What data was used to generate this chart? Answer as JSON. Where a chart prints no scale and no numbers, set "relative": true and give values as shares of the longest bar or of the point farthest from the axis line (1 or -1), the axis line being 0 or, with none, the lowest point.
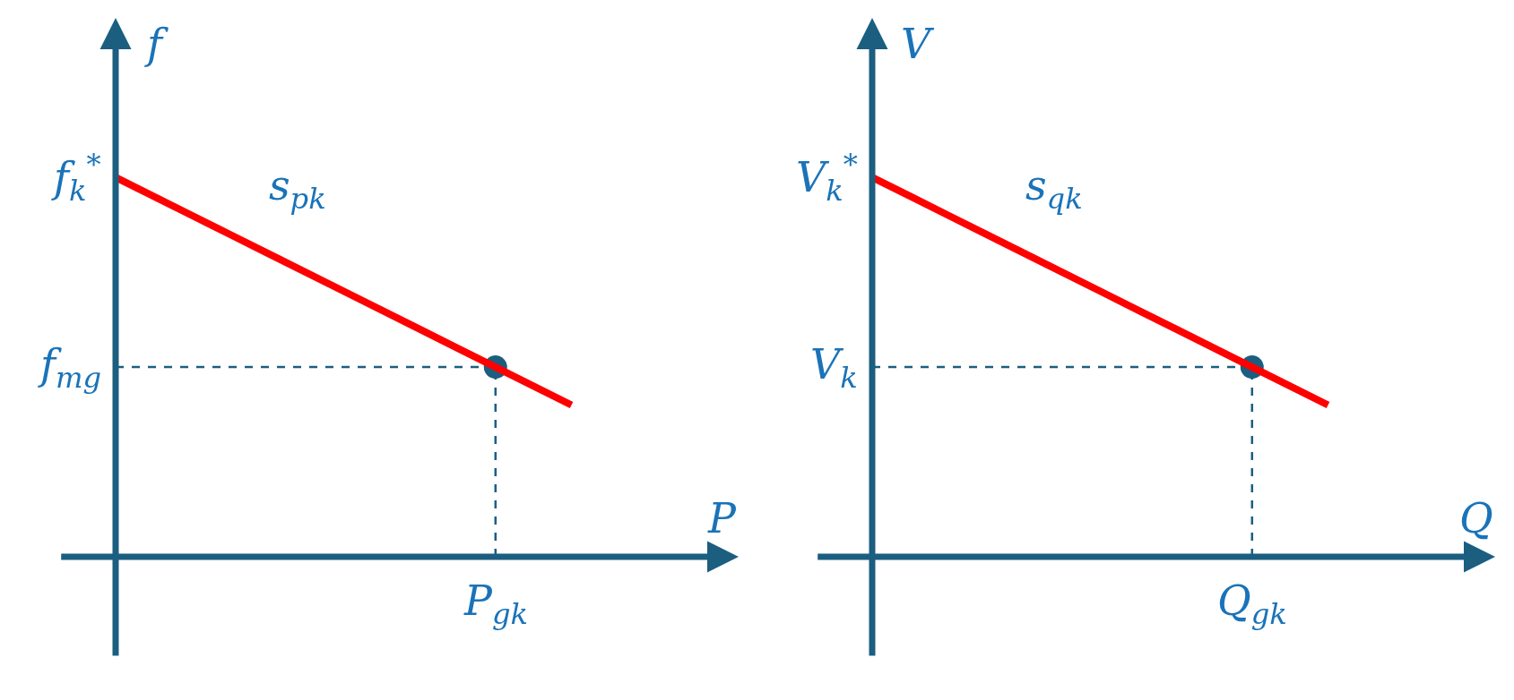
{
  "chart_data": [
    {
      "type": "line",
      "relative": true,
      "xlabel": "P",
      "ylabel": "f",
      "categories": [
        null,
        null,
        null,
        null,
        null,
        null,
        null
      ],
      "series": [
        {
          "values": [
            1,
            0.9,
            0.8,
            0.7,
            0.6,
            0.5,
            0.4
          ],
          "color": "#ff0000",
          "marker": "none",
          "line_style": "solid"
        },
        {
          "values": [
            0.5,
            0.5,
            0.5,
            0.5,
            0.5,
            0.5,
            null
          ],
          "color": "#1b5e80",
          "marker": "none",
          "line_style": "dashed"
        },
        {
          "values": [
            null,
            null,
            null,
            null,
            null,
            0.5,
            null
          ],
          "color": "#1b5e80",
          "marker": "circle"
        }
      ],
      "annotations": [
        "f$_{k}$$^{*}$",
        "f$_{mg}$",
        "P$_{gk}$",
        "s$_{pk}$"
      ]
    },
    {
      "type": "line",
      "relative": true,
      "xlabel": "Q",
      "ylabel": "V",
      "categories": [
        null,
        null,
        null,
        null,
        null,
        null,
        null
      ],
      "series": [
        {
          "values": [
            1,
            0.9,
            0.8,
            0.7,
            0.6,
            0.5,
            0.4
          ],
          "color": "#ff0000",
          "marker": "none",
          "line_style": "solid"
        },
        {
          "values": [
            0.5,
            0.5,
            0.5,
            0.5,
            0.5,
            0.5,
            null
          ],
          "color": "#1b5e80",
          "marker": "none",
          "line_style": "dashed"
        },
        {
          "values": [
            null,
            null,
            null,
            null,
            null,
            0.5,
            null
          ],
          "color": "#1b5e80",
          "marker": "circle"
        }
      ],
      "annotations": [
        "V$_{k}$$^{*}$",
        "V$_{k}$",
        "Q$_{gk}$",
        "s$_{qk}$"
      ]
    }
  ]
}
